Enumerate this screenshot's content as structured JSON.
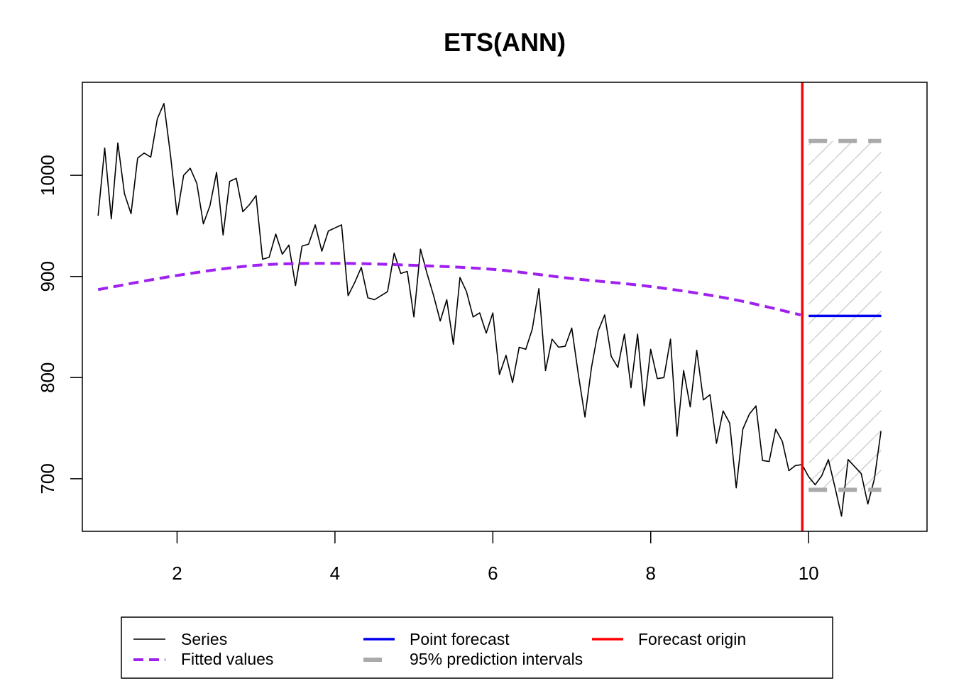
{
  "chart_data": {
    "type": "line",
    "title": "ETS(ANN)",
    "xlim": [
      0.8,
      11.5
    ],
    "ylim": [
      648,
      1092
    ],
    "x_ticks": [
      "2",
      "4",
      "6",
      "8",
      "10"
    ],
    "x_tick_values": [
      2,
      4,
      6,
      8,
      10
    ],
    "y_ticks": [
      "700",
      "800",
      "900",
      "1000"
    ],
    "y_tick_values": [
      700,
      800,
      900,
      1000
    ],
    "grid": false,
    "legend_position": "bottom",
    "x_start": 1.0,
    "x_step": 0.0833333,
    "series": [
      {
        "name": "Series",
        "color": "#000000",
        "values": [
          960,
          1027,
          957,
          1032,
          982,
          962,
          1017,
          1022,
          1018,
          1056,
          1071,
          1020,
          961,
          1000,
          1007,
          992,
          952,
          970,
          1003,
          941,
          994,
          997,
          964,
          971,
          980,
          917,
          919,
          942,
          922,
          931,
          891,
          930,
          932,
          951,
          925,
          945,
          948,
          951,
          881,
          894,
          909,
          879,
          877,
          881,
          885,
          923,
          903,
          905,
          860,
          927,
          903,
          881,
          856,
          877,
          833,
          899,
          885,
          860,
          864,
          844,
          864,
          803,
          822,
          795,
          830,
          828,
          848,
          888,
          807,
          838,
          830,
          831,
          849,
          803,
          761,
          810,
          846,
          862,
          821,
          810,
          843,
          790,
          843,
          772,
          828,
          799,
          800,
          838,
          742,
          807,
          771,
          827,
          778,
          783,
          735,
          767,
          755,
          691,
          749,
          764,
          772,
          718,
          717,
          749,
          737,
          708,
          713,
          714,
          702,
          694,
          703,
          719,
          692,
          663,
          719,
          712,
          705,
          675,
          700,
          747
        ]
      },
      {
        "name": "Fitted values",
        "color": "#a020f0",
        "x": [
          1,
          2,
          3,
          4,
          5,
          6,
          7,
          8,
          9,
          9.9
        ],
        "values": [
          887,
          901,
          911,
          913,
          911,
          907,
          898,
          890,
          878,
          862
        ]
      },
      {
        "name": "Point forecast",
        "color": "#0000ee",
        "x": [
          10,
          10.92
        ],
        "values": [
          861,
          861
        ]
      },
      {
        "name": "95% prediction intervals",
        "color": "#aaaaaa",
        "x": [
          10,
          10.92
        ],
        "upper": [
          1034,
          1034
        ],
        "lower": [
          689,
          689
        ]
      }
    ],
    "forecast_origin": {
      "name": "Forecast origin",
      "color": "#ff0000",
      "x": 9.92
    }
  }
}
